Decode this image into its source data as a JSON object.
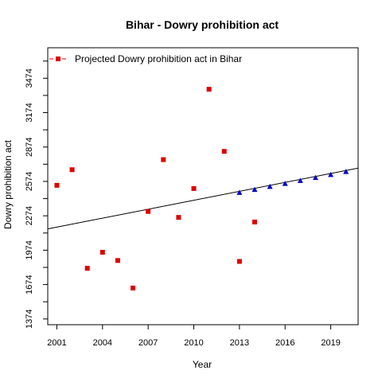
{
  "chart_data": {
    "type": "scatter",
    "title": "Bihar  -  Dowry prohibition act",
    "xlabel": "Year",
    "ylabel": "Dowry prohibition act",
    "xlim": [
      2000.4,
      2020.8
    ],
    "ylim": [
      1324,
      3740
    ],
    "x_ticks": [
      2001,
      2004,
      2007,
      2010,
      2013,
      2016,
      2019
    ],
    "y_ticks": [
      1374,
      1674,
      1974,
      2274,
      2574,
      2874,
      3174,
      3474
    ],
    "legend": {
      "position": "top-left",
      "label": "Projected  Dowry prohibition act  in  Bihar"
    },
    "colors": {
      "observed": "#dd0000",
      "projected": "#0000cc",
      "trend": "#000000"
    },
    "series": [
      {
        "points": [
          {
            "x": 2001,
            "y": 2540
          },
          {
            "x": 2002,
            "y": 2676
          },
          {
            "x": 2003,
            "y": 1816
          },
          {
            "x": 2004,
            "y": 1956
          },
          {
            "x": 2005,
            "y": 1884
          },
          {
            "x": 2006,
            "y": 1644
          },
          {
            "x": 2007,
            "y": 2312
          },
          {
            "x": 2008,
            "y": 2764
          },
          {
            "x": 2009,
            "y": 2260
          },
          {
            "x": 2010,
            "y": 2512
          },
          {
            "x": 2011,
            "y": 3378
          },
          {
            "x": 2012,
            "y": 2836
          },
          {
            "x": 2013,
            "y": 1876
          },
          {
            "x": 2014,
            "y": 2220
          }
        ]
      },
      {
        "points": [
          {
            "x": 2013,
            "y": 2474
          },
          {
            "x": 2014,
            "y": 2500
          },
          {
            "x": 2015,
            "y": 2526
          },
          {
            "x": 2016,
            "y": 2552
          },
          {
            "x": 2017,
            "y": 2578
          },
          {
            "x": 2018,
            "y": 2604
          },
          {
            "x": 2019,
            "y": 2630
          },
          {
            "x": 2020,
            "y": 2656
          }
        ]
      }
    ],
    "trend_line": {
      "x": [
        2000.4,
        2020.8
      ],
      "y": [
        2160,
        2690
      ]
    }
  }
}
